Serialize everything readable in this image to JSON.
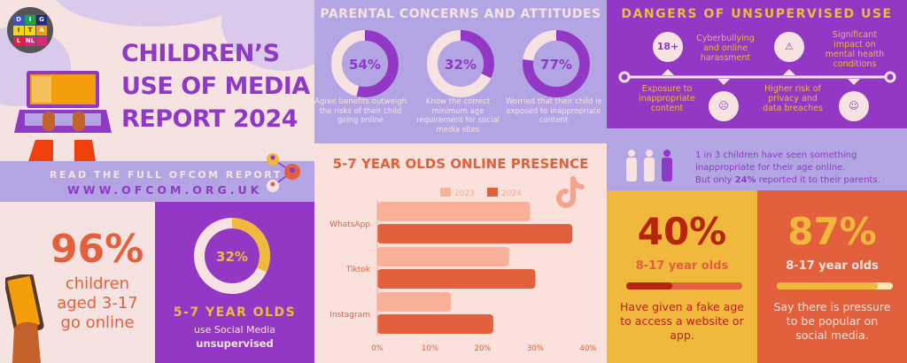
{
  "logo": {
    "letters": [
      "D",
      "I",
      "G",
      "I",
      "T",
      "A",
      "L",
      "NL",
      ""
    ]
  },
  "header": {
    "title_lines": [
      "CHILDREN’S",
      "USE OF MEDIA",
      "REPORT 2024"
    ]
  },
  "banner": {
    "cta": "READ THE FULL OFCOM REPORT",
    "url": "WWW.OFCOM.ORG.UK"
  },
  "stat_online": {
    "value": "96%",
    "lines": [
      "children",
      "aged 3-17",
      "go online"
    ]
  },
  "stat_unsupervised": {
    "value": "32%",
    "fraction": 0.32,
    "group": "5-7 YEAR OLDS",
    "line1": "use Social Media",
    "line2": "unsupervised",
    "color": "#f0b83c"
  },
  "parental": {
    "title": "PARENTAL CONCERNS AND ATTITUDES",
    "items": [
      {
        "value": "54%",
        "fraction": 0.54,
        "text": "Agree benefits outweigh the risks of their child going online"
      },
      {
        "value": "32%",
        "fraction": 0.32,
        "text": "Know the correct minimum age requirement for social media sites"
      },
      {
        "value": "77%",
        "fraction": 0.77,
        "text": "Worried that their child is exposed to inappropriate content"
      }
    ]
  },
  "chart_data": {
    "type": "bar",
    "orientation": "horizontal",
    "title": "5-7 YEAR OLDS ONLINE PRESENCE",
    "categories": [
      "WhatsApp",
      "Tiktok",
      "Instagram"
    ],
    "series": [
      {
        "name": "2023",
        "values": [
          29,
          25,
          14
        ],
        "color": "#fbb09a"
      },
      {
        "name": "2024",
        "values": [
          37,
          30,
          22
        ],
        "color": "#e2613c"
      }
    ],
    "xlim": [
      0,
      40
    ],
    "xticks": [
      "0%",
      "10%",
      "20%",
      "30%",
      "40%"
    ],
    "legend": "top",
    "grid": false
  },
  "dangers": {
    "title": "DANGERS OF UNSUPERVISED USE",
    "items": [
      {
        "text": "Exposure to inappropriate content",
        "icon": "18-plus-icon",
        "glyph": "18+"
      },
      {
        "text": "Cyberbullying and online harassment",
        "icon": "phone-chat-icon",
        "glyph": "☹"
      },
      {
        "text": "Higher risk of privacy and data breaches",
        "icon": "shield-lock-icon",
        "glyph": "⚠"
      },
      {
        "text": "Significant impact on mental health conditions",
        "icon": "head-brain-icon",
        "glyph": "☺"
      }
    ]
  },
  "one_in_three": {
    "line1": "1 in 3 children have seen something",
    "line2": "inappropriate for their age online.",
    "line3_pre": "But only ",
    "line3_bold": "24%",
    "line3_post": " reported it to their parents."
  },
  "fake_age": {
    "value": "40%",
    "fraction": 0.4,
    "group": "8-17 year olds",
    "text": "Have given a fake age to access a website or app."
  },
  "pressure": {
    "value": "87%",
    "fraction": 0.87,
    "group": "8-17 year olds",
    "text": "Say there is pressure to be popular on social media."
  }
}
